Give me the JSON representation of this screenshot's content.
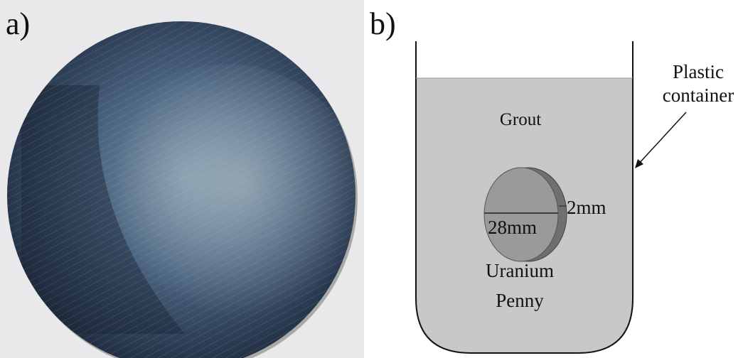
{
  "panel_a": {
    "label": "a)"
  },
  "panel_b": {
    "label": "b)",
    "container_label_line1": "Plastic",
    "container_label_line2": "container",
    "grout_label": "Grout",
    "thickness_label": "2mm",
    "diameter_label": "28mm",
    "penny_label_line1": "Uranium",
    "penny_label_line2": "Penny"
  },
  "colors": {
    "grout_fill": "#c8c8c8",
    "penny_face": "#9a9a9a",
    "penny_edge": "#6f6f6f",
    "outline": "#111111",
    "photo_background": "#e9e9ec",
    "disc_dark": "#1f2c3d",
    "disc_mid": "#3e5670",
    "disc_highlight": "#8fa6b4"
  }
}
